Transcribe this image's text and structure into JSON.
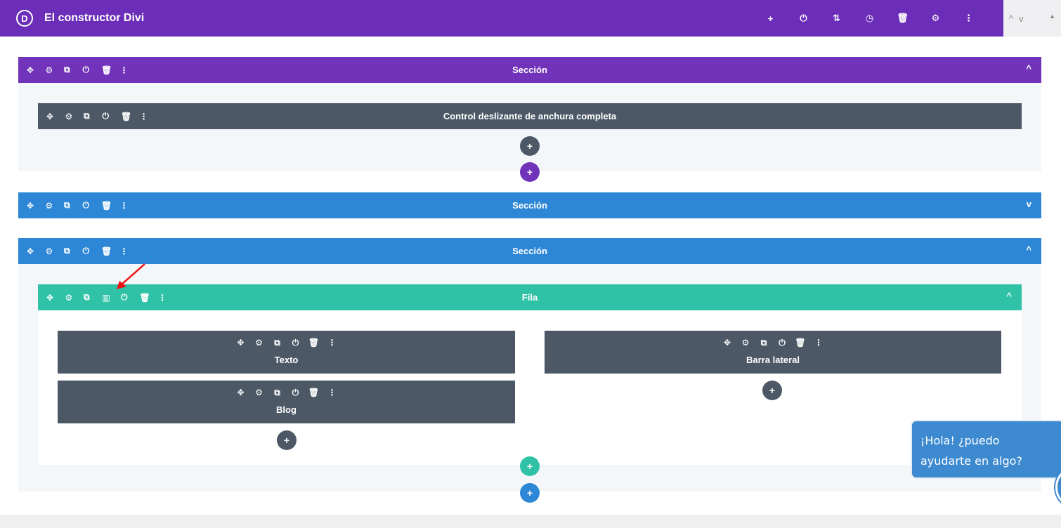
{
  "header": {
    "logo_letter": "D",
    "title": "El constructor Divi",
    "actions": [
      "+",
      "⏻",
      "⇅",
      "◷",
      "🗑",
      "⚙",
      "⋮"
    ]
  },
  "scroll_controls": {
    "up": "^",
    "down": "v",
    "top": "▲"
  },
  "bar_icons": [
    "✥",
    "⚙",
    "⧉",
    "⏻",
    "🗑",
    "⋮"
  ],
  "row_icons": [
    "✥",
    "⚙",
    "⧉",
    "▥",
    "⏻",
    "🗑",
    "⋮"
  ],
  "sections": [
    {
      "title": "Sección",
      "color": "#7033b9",
      "chevron": "^"
    },
    {
      "title": "Sección",
      "color": "#2d87d6",
      "chevron": "v"
    },
    {
      "title": "Sección",
      "color": "#2d87d6",
      "chevron": "^"
    }
  ],
  "fullwidth_module": {
    "title": "Control deslizante de anchura completa"
  },
  "row": {
    "title": "Fila",
    "color": "#2fc2a6",
    "chevron": "^"
  },
  "modules": {
    "texto": "Texto",
    "blog": "Blog",
    "sidebar": "Barra lateral"
  },
  "add_label": "+",
  "chat": {
    "line1": "¡Hola! ¿puedo",
    "line2": "ayudarte en algo?"
  }
}
